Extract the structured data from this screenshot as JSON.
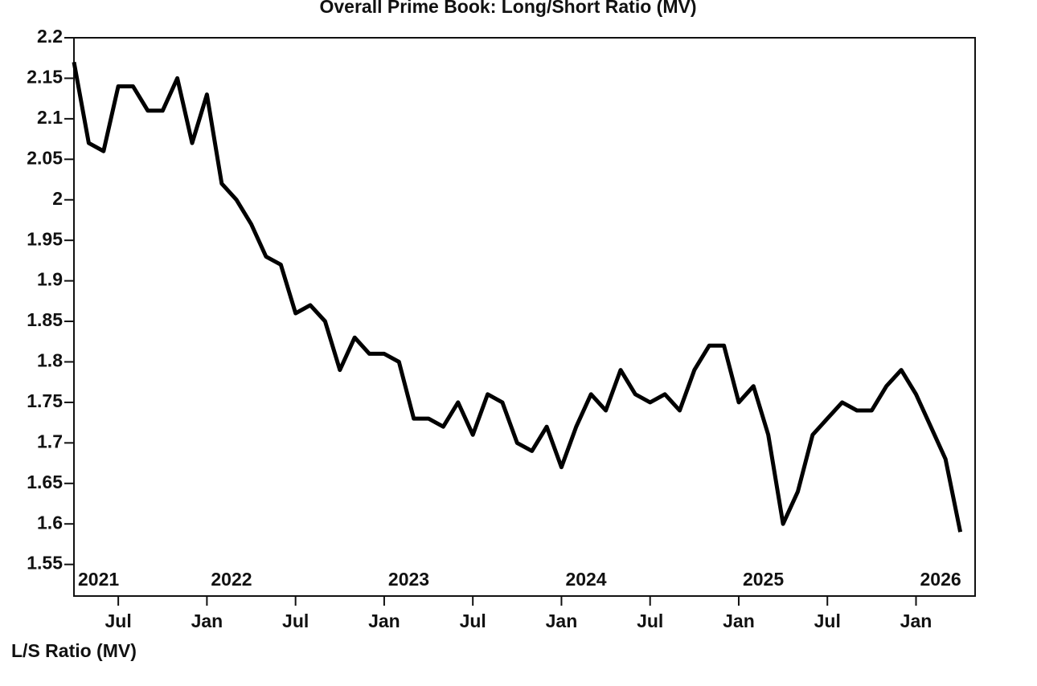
{
  "chart_data": {
    "type": "line",
    "title": "Overall Prime Book: Long/Short Ratio (MV)",
    "y_label": "L/S Ratio (MV)",
    "color": "#000000",
    "x": [
      "2021-04",
      "2021-05",
      "2021-06",
      "2021-07",
      "2021-08",
      "2021-09",
      "2021-10",
      "2021-11",
      "2021-12",
      "2022-01",
      "2022-02",
      "2022-03",
      "2022-04",
      "2022-05",
      "2022-06",
      "2022-07",
      "2022-08",
      "2022-09",
      "2022-10",
      "2022-11",
      "2022-12",
      "2023-01",
      "2023-02",
      "2023-03",
      "2023-04",
      "2023-05",
      "2023-06",
      "2023-07",
      "2023-08",
      "2023-09",
      "2023-10",
      "2023-11",
      "2023-12",
      "2024-01",
      "2024-02",
      "2024-03",
      "2024-04",
      "2024-05",
      "2024-06",
      "2024-07",
      "2024-08",
      "2024-09",
      "2024-10",
      "2024-11",
      "2024-12",
      "2025-01",
      "2025-02",
      "2025-03",
      "2025-04",
      "2025-05",
      "2025-06",
      "2025-07",
      "2025-08",
      "2025-09",
      "2025-10",
      "2025-11",
      "2025-12",
      "2026-01",
      "2026-02",
      "2026-03",
      "2026-04"
    ],
    "values": [
      2.17,
      2.07,
      2.06,
      2.14,
      2.14,
      2.11,
      2.11,
      2.15,
      2.07,
      2.13,
      2.02,
      2.0,
      1.97,
      1.93,
      1.92,
      1.86,
      1.87,
      1.85,
      1.79,
      1.83,
      1.81,
      1.81,
      1.8,
      1.73,
      1.73,
      1.72,
      1.75,
      1.71,
      1.76,
      1.75,
      1.7,
      1.69,
      1.72,
      1.67,
      1.72,
      1.76,
      1.74,
      1.79,
      1.76,
      1.75,
      1.76,
      1.74,
      1.79,
      1.82,
      1.82,
      1.75,
      1.77,
      1.71,
      1.6,
      1.64,
      1.71,
      1.73,
      1.75,
      1.74,
      1.74,
      1.77,
      1.79,
      1.76,
      1.72,
      1.68,
      1.59
    ],
    "xlim": [
      "2021-04",
      "2026-05"
    ],
    "ylim": [
      1.511,
      2.2
    ],
    "yticks": [
      1.55,
      1.6,
      1.65,
      1.7,
      1.75,
      1.8,
      1.85,
      1.9,
      1.95,
      2,
      2.05,
      2.1,
      2.15,
      2.2
    ],
    "xticks": [
      {
        "value": "2021-07",
        "label": "Jul"
      },
      {
        "value": "2022-01",
        "label": "Jan"
      },
      {
        "value": "2022-07",
        "label": "Jul"
      },
      {
        "value": "2023-01",
        "label": "Jan"
      },
      {
        "value": "2023-07",
        "label": "Jul"
      },
      {
        "value": "2024-01",
        "label": "Jan"
      },
      {
        "value": "2024-07",
        "label": "Jul"
      },
      {
        "value": "2025-01",
        "label": "Jan"
      },
      {
        "value": "2025-07",
        "label": "Jul"
      },
      {
        "value": "2026-01",
        "label": "Jan"
      }
    ],
    "xticks_major": [
      {
        "value": "2021-04",
        "label": "2021"
      },
      {
        "value": "2022-01",
        "label": "2022"
      },
      {
        "value": "2023-01",
        "label": "2023"
      },
      {
        "value": "2024-01",
        "label": "2024"
      },
      {
        "value": "2025-01",
        "label": "2025"
      },
      {
        "value": "2026-01",
        "label": "2026"
      }
    ]
  }
}
